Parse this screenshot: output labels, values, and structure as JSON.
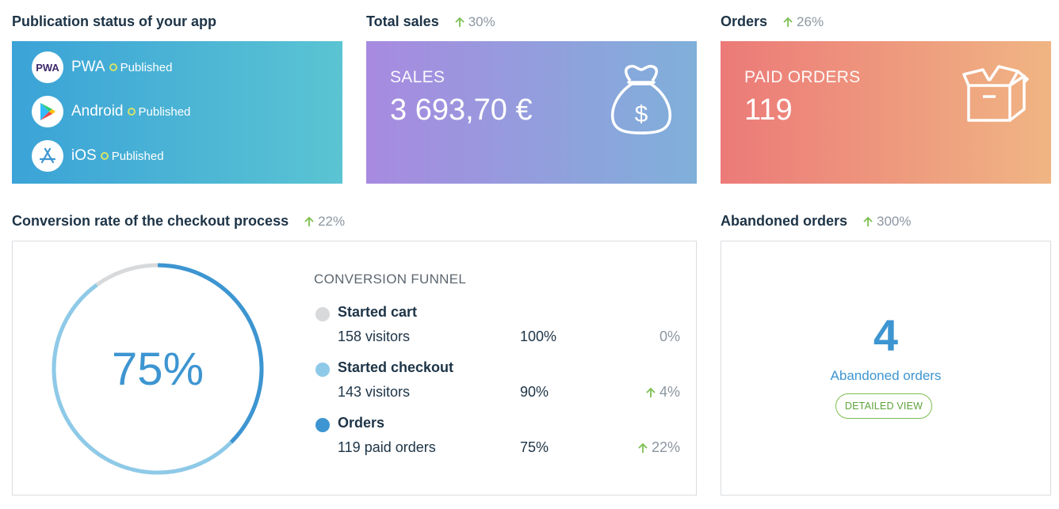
{
  "colors": {
    "trend_up": "#7cbf50",
    "accent_blue": "#3d95d1",
    "funnel_grey": "#d7d9db",
    "funnel_light_blue": "#8ecae8",
    "funnel_blue": "#3d95d1"
  },
  "publication": {
    "title": "Publication status of your app",
    "platforms": [
      {
        "name": "PWA",
        "status": "Published",
        "icon": "pwa-logo-icon"
      },
      {
        "name": "Android",
        "status": "Published",
        "icon": "google-play-icon"
      },
      {
        "name": "iOS",
        "status": "Published",
        "icon": "app-store-icon"
      }
    ],
    "pwa_logo_text": "PWA"
  },
  "sales": {
    "title": "Total sales",
    "trend": "30%",
    "label": "SALES",
    "value": "3 693,70 €",
    "icon": "money-bag-icon"
  },
  "orders": {
    "title": "Orders",
    "trend": "26%",
    "label": "PAID ORDERS",
    "value": "119",
    "icon": "box-icon"
  },
  "conversion": {
    "title": "Conversion rate of the checkout process",
    "trend": "22%",
    "rate_text": "75%",
    "rate_value": 0.75,
    "funnel_title": "CONVERSION FUNNEL",
    "steps": [
      {
        "label": "Started cart",
        "count": "158 visitors",
        "pct": "100%",
        "delta": "0%",
        "delta_up": false,
        "share": 1.0
      },
      {
        "label": "Started checkout",
        "count": "143 visitors",
        "pct": "90%",
        "delta": "4%",
        "delta_up": true,
        "share": 0.9
      },
      {
        "label": "Orders",
        "count": "119 paid orders",
        "pct": "75%",
        "delta": "22%",
        "delta_up": true,
        "share": 0.75
      }
    ]
  },
  "abandoned": {
    "title": "Abandoned orders",
    "trend": "300%",
    "value": "4",
    "label": "Abandoned orders",
    "button": "DETAILED VIEW"
  }
}
